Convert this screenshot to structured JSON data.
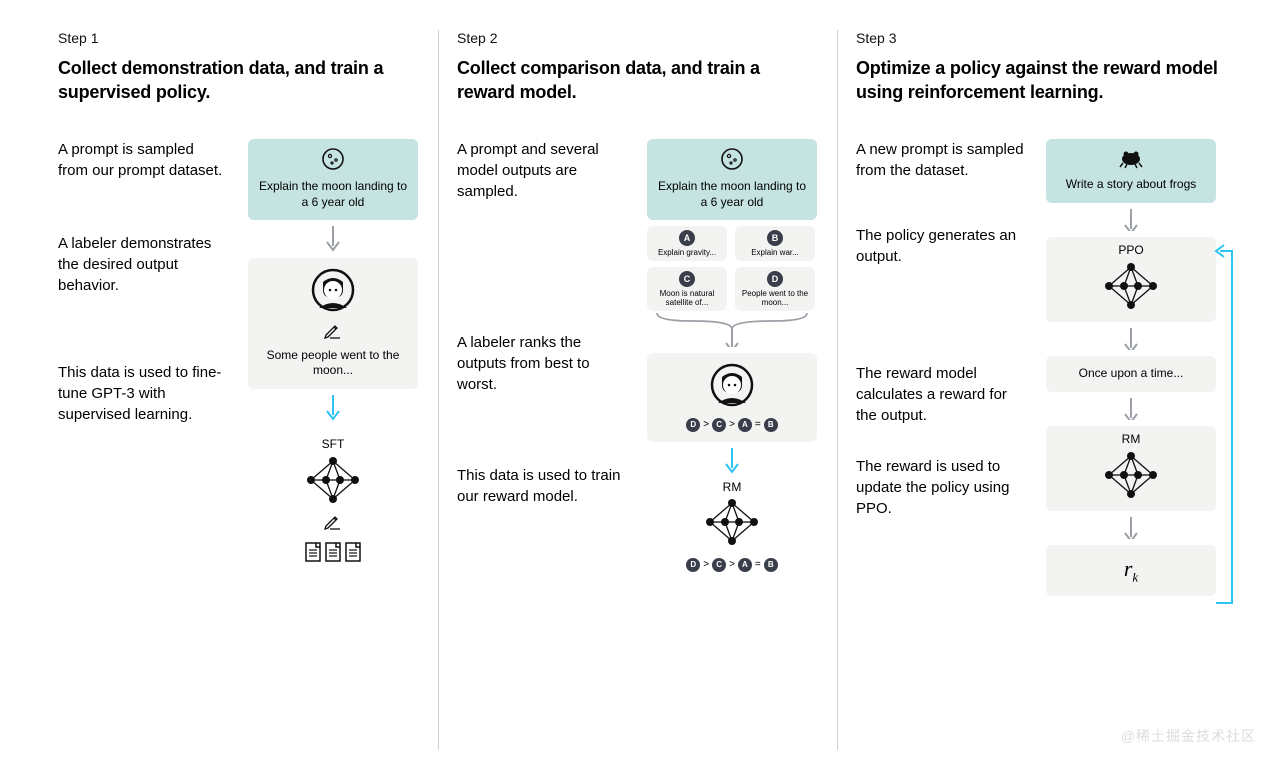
{
  "colors": {
    "prompt_bg": "#c4e3e1",
    "card_bg": "#f3f3f1",
    "arrow_gray": "#9aa0a6",
    "arrow_blue": "#2cc5f3",
    "badge_bg": "#3a3d4a",
    "divider": "#d0d0d0",
    "text": "#111111"
  },
  "watermark": "@稀土掘金技术社区",
  "step1": {
    "label": "Step 1",
    "title": "Collect demonstration data, and train a supervised policy.",
    "desc1": "A prompt is sampled from our prompt dataset.",
    "prompt": "Explain the moon landing to a 6 year old",
    "desc2": "A labeler demonstrates the desired output behavior.",
    "labeler_text": "Some people went to the moon...",
    "desc3": "This data is used to fine-tune GPT-3 with supervised learning.",
    "model_label": "SFT"
  },
  "step2": {
    "label": "Step 2",
    "title": "Collect comparison data, and train a reward model.",
    "desc1": "A prompt and several model outputs are sampled.",
    "prompt": "Explain the moon landing to a 6 year old",
    "options": [
      {
        "badge": "A",
        "text": "Explain gravity..."
      },
      {
        "badge": "B",
        "text": "Explain war..."
      },
      {
        "badge": "C",
        "text": "Moon is natural satellite of..."
      },
      {
        "badge": "D",
        "text": "People went to the moon..."
      }
    ],
    "desc2": "A labeler ranks the outputs from best to worst.",
    "ranking": [
      "D",
      ">",
      "C",
      ">",
      "A",
      "=",
      "B"
    ],
    "desc3": "This data is used to train our reward model.",
    "model_label": "RM"
  },
  "step3": {
    "label": "Step 3",
    "title": "Optimize a policy against the reward model using reinforcement learning.",
    "desc1": "A new prompt is sampled from the dataset.",
    "prompt": "Write a story about frogs",
    "desc2": "The policy generates an output.",
    "ppo_label": "PPO",
    "output_text": "Once upon a time...",
    "desc3": "The reward model calculates a reward for the output.",
    "rm_label": "RM",
    "desc4": "The reward is used to update the policy using PPO.",
    "reward_symbol": "r",
    "reward_sub": "k"
  }
}
